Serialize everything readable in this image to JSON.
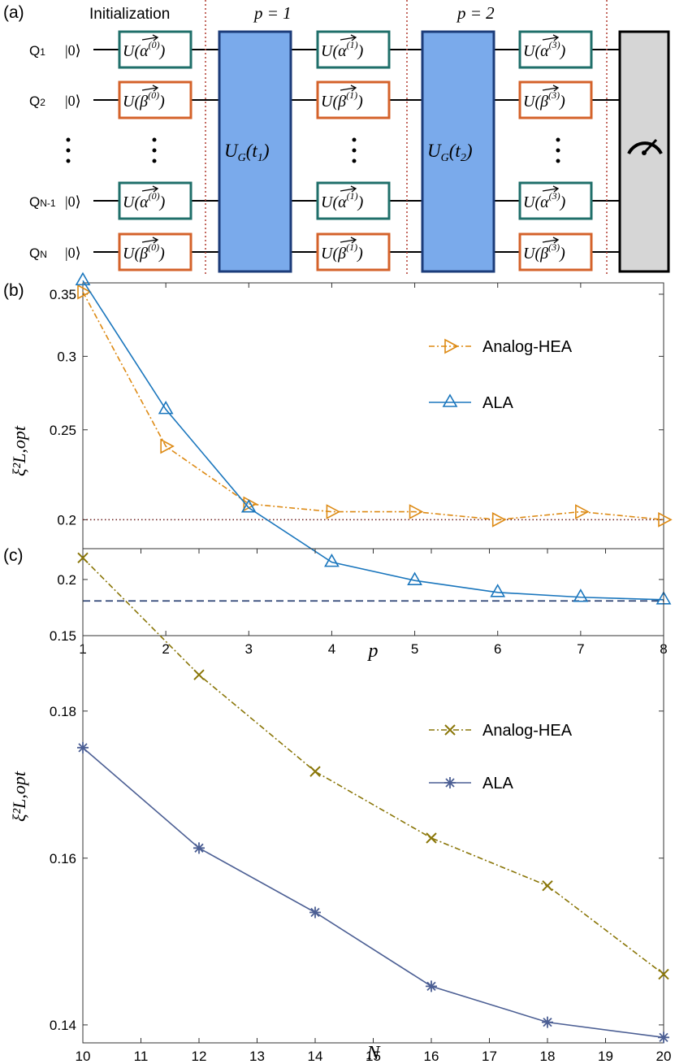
{
  "panel_a": {
    "label": "(a)",
    "init_label": "Initialization",
    "layer_labels": [
      "p = 1",
      "p = 2"
    ],
    "qubits": [
      "Q1",
      "Q2",
      "QN-1",
      "QN"
    ],
    "ket": "|0⟩",
    "gate_prefix": "U(",
    "alpha_symbol": "α",
    "beta_symbol": "β",
    "columns": [
      {
        "superscripts": [
          "(0)",
          "(0)",
          "(0)",
          "(0)"
        ]
      },
      {
        "superscripts": [
          "(1)",
          "(1)",
          "(1)",
          "(1)"
        ]
      },
      {
        "superscripts": [
          "(3)",
          "(3)",
          "(3)",
          "(3)"
        ]
      }
    ],
    "ug_gates": [
      "U_G(t_1)",
      "U_G(t_2)"
    ],
    "colors": {
      "alpha_box": "#1f6f6a",
      "beta_box": "#d4622a",
      "ug_fill": "#7aaaeb",
      "ug_stroke": "#1c3c7a",
      "measure_fill": "#d6d6d6",
      "separator": "#b03a2e"
    }
  },
  "chart_data": [
    {
      "panel_label": "(b)",
      "type": "line",
      "x": [
        1,
        2,
        3,
        4,
        5,
        6,
        7,
        8
      ],
      "xlabel": "p",
      "ylabel": "ξ²L,opt",
      "xlim": [
        1,
        8
      ],
      "ylim": [
        0.15,
        0.36
      ],
      "y_scale": "log",
      "yticks": [
        0.15,
        0.2,
        0.25,
        0.3,
        0.35
      ],
      "ytick_labels": [
        "0.15",
        "0.2",
        "0.25",
        "0.3",
        "0.35"
      ],
      "xticks": [
        1,
        2,
        3,
        4,
        5,
        6,
        7,
        8
      ],
      "legend_position": "top-right",
      "series": [
        {
          "name": "Analog-HEA",
          "values": [
            0.352,
            0.24,
            0.208,
            0.204,
            0.204,
            0.2,
            0.204,
            0.2
          ],
          "color": "#dd8a14",
          "marker": "triangle-right",
          "dash": "dash-dot"
        },
        {
          "name": "ALA",
          "values": [
            0.362,
            0.263,
            0.206,
            0.18,
            0.172,
            0.167,
            0.165,
            0.164
          ],
          "color": "#1a76bd",
          "marker": "triangle-up",
          "dash": "solid"
        }
      ],
      "reference_lines": [
        {
          "y": 0.2,
          "color": "#6b1b1b",
          "style": "dotted"
        },
        {
          "y": 0.1635,
          "color": "#223a6e",
          "style": "dashed"
        }
      ]
    },
    {
      "panel_label": "(c)",
      "type": "line",
      "x": [
        10,
        12,
        14,
        16,
        18,
        20
      ],
      "xlabel": "N",
      "ylabel": "ξ²L,opt",
      "xlim": [
        10,
        20
      ],
      "ylim": [
        0.138,
        0.205
      ],
      "y_scale": "log",
      "yticks": [
        0.14,
        0.16,
        0.18,
        0.2
      ],
      "ytick_labels": [
        "0.14",
        "0.16",
        "0.18",
        "0.2"
      ],
      "xticks": [
        10,
        11,
        12,
        13,
        14,
        15,
        16,
        17,
        18,
        19,
        20
      ],
      "legend_position": "top-right",
      "series": [
        {
          "name": "Analog-HEA",
          "values": [
            0.2035,
            0.1853,
            0.1715,
            0.1626,
            0.1565,
            0.1458
          ],
          "color": "#8a7608",
          "marker": "x",
          "dash": "dash-dot"
        },
        {
          "name": "ALA",
          "values": [
            0.1748,
            0.1613,
            0.1532,
            0.1444,
            0.1403,
            0.1386
          ],
          "color": "#4c5f94",
          "marker": "asterisk",
          "dash": "solid"
        }
      ]
    }
  ]
}
